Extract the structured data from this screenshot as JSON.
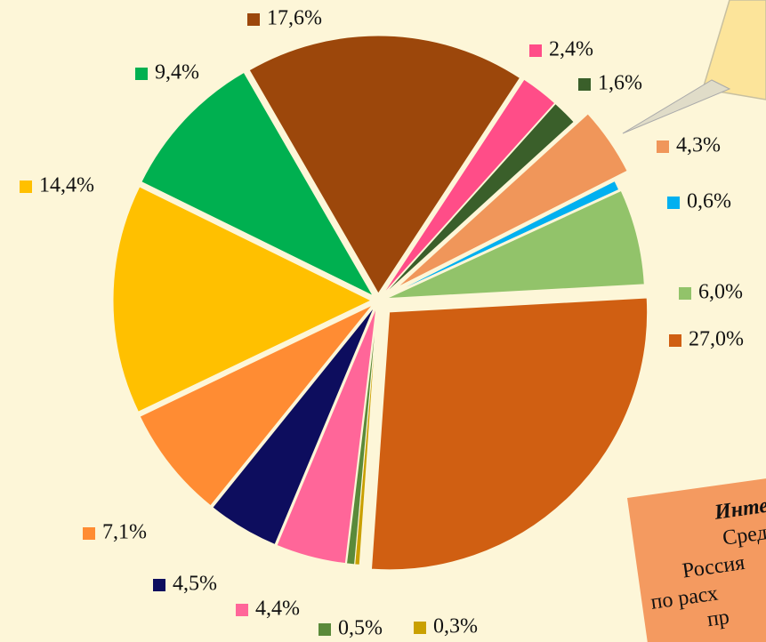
{
  "chart_data": {
    "type": "pie",
    "categories": [
      null,
      null,
      null,
      null,
      null,
      null,
      null,
      null,
      null,
      null,
      null,
      null,
      null,
      null
    ],
    "values": [
      17.6,
      2.4,
      1.6,
      4.3,
      0.6,
      6.0,
      27.0,
      0.3,
      0.5,
      4.4,
      4.5,
      7.1,
      14.4,
      9.4
    ],
    "value_labels": [
      "17,6%",
      "2,4%",
      "1,6%",
      "4,3%",
      "0,6%",
      "6,0%",
      "27,0%",
      "0,3%",
      "0,5%",
      "4,4%",
      "4,5%",
      "7,1%",
      "14,4%",
      "9,4%"
    ],
    "colors": [
      "#9c470b",
      "#ff4d88",
      "#3a5f2a",
      "#f0965a",
      "#00b0f0",
      "#92c36a",
      "#d05f12",
      "#c9a000",
      "#5a8a3a",
      "#ff6699",
      "#0d0d5e",
      "#ff8c33",
      "#ffc000",
      "#00b050"
    ],
    "annotation_lines": [
      "Инте",
      "Сред",
      "Россия",
      "по расх",
      "пр"
    ]
  }
}
